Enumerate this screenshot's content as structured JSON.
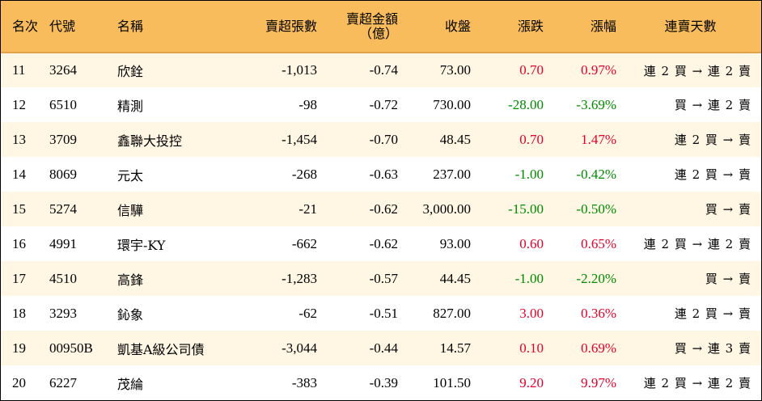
{
  "header": {
    "rank": "名次",
    "code": "代號",
    "name": "名稱",
    "net_lots": "賣超張數",
    "net_amount_line1": "賣超金額",
    "net_amount_line2": "（億）",
    "close": "收盤",
    "change": "漲跌",
    "change_pct": "漲幅",
    "streak": "連賣天數"
  },
  "colors": {
    "header_bg": "#f8bc5d",
    "row_alt_bg": "#fff6e4",
    "up": "#e0002a",
    "down": "#008a00"
  },
  "rows": [
    {
      "rank": "11",
      "code": "3264",
      "name": "欣銓",
      "net_lots": "-1,013",
      "net_amount": "-0.74",
      "close": "73.00",
      "change": "0.70",
      "change_pct": "0.97%",
      "dir": "up",
      "streak": "連 2 買 → 連 2 賣"
    },
    {
      "rank": "12",
      "code": "6510",
      "name": "精測",
      "net_lots": "-98",
      "net_amount": "-0.72",
      "close": "730.00",
      "change": "-28.00",
      "change_pct": "-3.69%",
      "dir": "down",
      "streak": "買 → 連 2 賣"
    },
    {
      "rank": "13",
      "code": "3709",
      "name": "鑫聯大投控",
      "net_lots": "-1,454",
      "net_amount": "-0.70",
      "close": "48.45",
      "change": "0.70",
      "change_pct": "1.47%",
      "dir": "up",
      "streak": "連 2 買 → 賣"
    },
    {
      "rank": "14",
      "code": "8069",
      "name": "元太",
      "net_lots": "-268",
      "net_amount": "-0.63",
      "close": "237.00",
      "change": "-1.00",
      "change_pct": "-0.42%",
      "dir": "down",
      "streak": "連 2 買 → 賣"
    },
    {
      "rank": "15",
      "code": "5274",
      "name": "信驊",
      "net_lots": "-21",
      "net_amount": "-0.62",
      "close": "3,000.00",
      "change": "-15.00",
      "change_pct": "-0.50%",
      "dir": "down",
      "streak": "買 → 賣"
    },
    {
      "rank": "16",
      "code": "4991",
      "name": "環宇-KY",
      "net_lots": "-662",
      "net_amount": "-0.62",
      "close": "93.00",
      "change": "0.60",
      "change_pct": "0.65%",
      "dir": "up",
      "streak": "連 2 買 → 連 2 賣"
    },
    {
      "rank": "17",
      "code": "4510",
      "name": "高鋒",
      "net_lots": "-1,283",
      "net_amount": "-0.57",
      "close": "44.45",
      "change": "-1.00",
      "change_pct": "-2.20%",
      "dir": "down",
      "streak": "買 → 賣"
    },
    {
      "rank": "18",
      "code": "3293",
      "name": "鈊象",
      "net_lots": "-62",
      "net_amount": "-0.51",
      "close": "827.00",
      "change": "3.00",
      "change_pct": "0.36%",
      "dir": "up",
      "streak": "連 2 買 → 賣"
    },
    {
      "rank": "19",
      "code": "00950B",
      "name": "凱基A級公司債",
      "net_lots": "-3,044",
      "net_amount": "-0.44",
      "close": "14.57",
      "change": "0.10",
      "change_pct": "0.69%",
      "dir": "up",
      "streak": "買 → 連 3 賣"
    },
    {
      "rank": "20",
      "code": "6227",
      "name": "茂綸",
      "net_lots": "-383",
      "net_amount": "-0.39",
      "close": "101.50",
      "change": "9.20",
      "change_pct": "9.97%",
      "dir": "up",
      "streak": "連 2 買 → 連 2 賣"
    }
  ]
}
